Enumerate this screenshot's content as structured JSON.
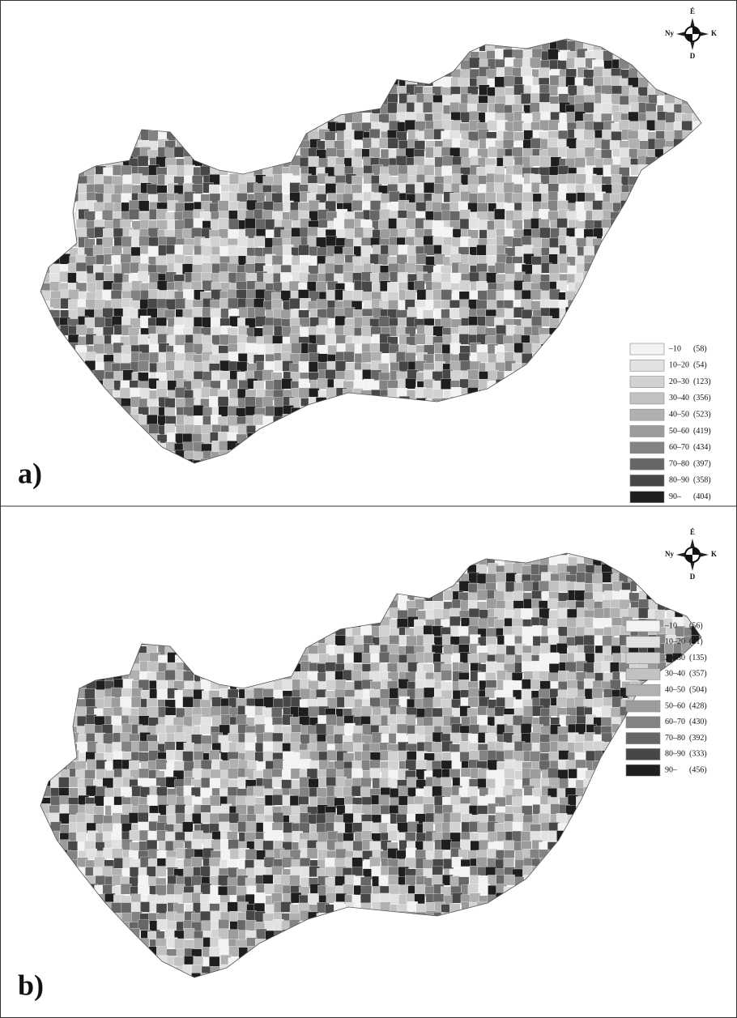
{
  "panels": [
    {
      "label": "a)",
      "compass": {
        "north": "É",
        "west": "Ny",
        "east": "K",
        "south": "D"
      },
      "legend": [
        {
          "range": "–10",
          "count": "(58)",
          "color": "#f3f3f3"
        },
        {
          "range": "10–20",
          "count": "(54)",
          "color": "#e2e2e2"
        },
        {
          "range": "20–30",
          "count": "(123)",
          "color": "#d2d2d2"
        },
        {
          "range": "30–40",
          "count": "(356)",
          "color": "#c2c2c2"
        },
        {
          "range": "40–50",
          "count": "(523)",
          "color": "#b1b1b1"
        },
        {
          "range": "50–60",
          "count": "(419)",
          "color": "#9c9c9c"
        },
        {
          "range": "60–70",
          "count": "(434)",
          "color": "#838383"
        },
        {
          "range": "70–80",
          "count": "(397)",
          "color": "#666666"
        },
        {
          "range": "80–90",
          "count": "(358)",
          "color": "#474747"
        },
        {
          "range": "90–",
          "count": "(404)",
          "color": "#1e1e1e"
        }
      ]
    },
    {
      "label": "b)",
      "compass": {
        "north": "É",
        "west": "Ny",
        "east": "K",
        "south": "D"
      },
      "legend": [
        {
          "range": "–10",
          "count": "(56)",
          "color": "#f3f3f3"
        },
        {
          "range": "10–20",
          "count": "(41)",
          "color": "#e2e2e2"
        },
        {
          "range": "20–30",
          "count": "(135)",
          "color": "#d2d2d2"
        },
        {
          "range": "30–40",
          "count": "(357)",
          "color": "#c2c2c2"
        },
        {
          "range": "40–50",
          "count": "(504)",
          "color": "#b1b1b1"
        },
        {
          "range": "50–60",
          "count": "(428)",
          "color": "#9c9c9c"
        },
        {
          "range": "60–70",
          "count": "(430)",
          "color": "#838383"
        },
        {
          "range": "70–80",
          "count": "(392)",
          "color": "#666666"
        },
        {
          "range": "80–90",
          "count": "(333)",
          "color": "#474747"
        },
        {
          "range": "90–",
          "count": "(456)",
          "color": "#1e1e1e"
        }
      ]
    }
  ]
}
